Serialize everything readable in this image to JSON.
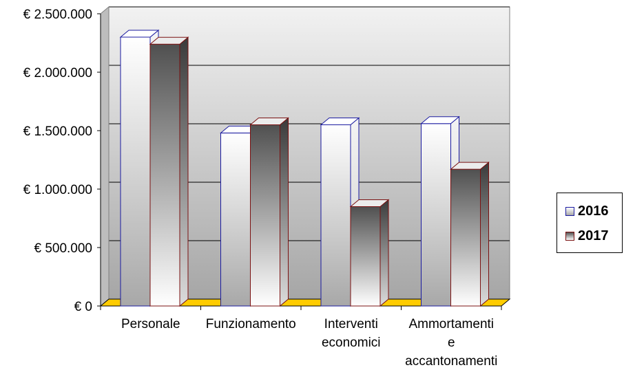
{
  "chart_data": {
    "type": "bar",
    "categories": [
      "Personale",
      "Funzionamento",
      "Interventi economici",
      "Ammortamenti e accantonamenti"
    ],
    "category_lines": [
      [
        "Personale"
      ],
      [
        "Funzionamento"
      ],
      [
        "Interventi",
        "economici"
      ],
      [
        "Ammortamenti",
        "e",
        "accantonamenti"
      ]
    ],
    "series": [
      {
        "name": "2016",
        "values": [
          2300000,
          1480000,
          1550000,
          1560000
        ]
      },
      {
        "name": "2017",
        "values": [
          2240000,
          1550000,
          850000,
          1170000
        ]
      }
    ],
    "yticks": [
      "€ 0",
      "€ 500.000",
      "€ 1.000.000",
      "€ 1.500.000",
      "€ 2.000.000",
      "€ 2.500.000"
    ],
    "ylim": [
      0,
      2500000
    ],
    "grid": true,
    "legend": "right",
    "title": "",
    "xlabel": "",
    "ylabel": "",
    "colors": {
      "series_2016_edge": "#1a1aa0",
      "series_2017_edge": "#7a1010",
      "floor": "#ffcc00",
      "wall": "#c8c8c8"
    }
  }
}
